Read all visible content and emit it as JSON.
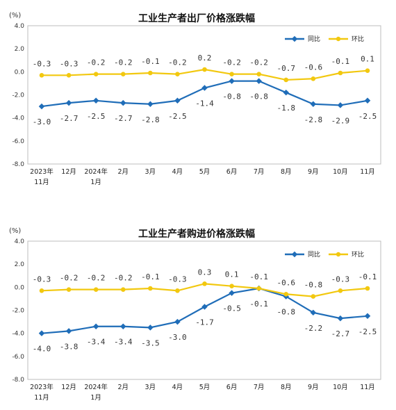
{
  "colors": {
    "yoy": "#1f6db8",
    "mom": "#f2c80f"
  },
  "chart_data": [
    {
      "type": "line",
      "title": "工业生产者出厂价格涨跌幅",
      "unit": "(%)",
      "categories": [
        "2023年\n11月",
        "12月",
        "2024年\n1月",
        "2月",
        "3月",
        "4月",
        "5月",
        "6月",
        "7月",
        "8月",
        "9月",
        "10月",
        "11月"
      ],
      "ylim": [
        -8.0,
        4.0
      ],
      "yticks": [
        "4.0",
        "2.0",
        "0.0",
        "-2.0",
        "-4.0",
        "-6.0",
        "-8.0"
      ],
      "legend_position": "top-right",
      "series": [
        {
          "name": "同比",
          "values": [
            -3.0,
            -2.7,
            -2.5,
            -2.7,
            -2.8,
            -2.5,
            -1.4,
            -0.8,
            -0.8,
            -1.8,
            -2.8,
            -2.9,
            -2.5
          ],
          "labels": [
            "-3.0",
            "-2.7",
            "-2.5",
            "-2.7",
            "-2.8",
            "-2.5",
            "-1.4",
            "-0.8",
            "-0.8",
            "-1.8",
            "-2.8",
            "-2.9",
            "-2.5"
          ]
        },
        {
          "name": "环比",
          "values": [
            -0.3,
            -0.3,
            -0.2,
            -0.2,
            -0.1,
            -0.2,
            0.2,
            -0.2,
            -0.2,
            -0.7,
            -0.6,
            -0.1,
            0.1
          ],
          "labels": [
            "-0.3",
            "-0.3",
            "-0.2",
            "-0.2",
            "-0.1",
            "-0.2",
            "0.2",
            "-0.2",
            "-0.2",
            "-0.7",
            "-0.6",
            "-0.1",
            "0.1"
          ]
        }
      ]
    },
    {
      "type": "line",
      "title": "工业生产者购进价格涨跌幅",
      "unit": "(%)",
      "categories": [
        "2023年\n11月",
        "12月",
        "2024年\n1月",
        "2月",
        "3月",
        "4月",
        "5月",
        "6月",
        "7月",
        "8月",
        "9月",
        "10月",
        "11月"
      ],
      "ylim": [
        -8.0,
        4.0
      ],
      "yticks": [
        "4.0",
        "2.0",
        "0.0",
        "-2.0",
        "-4.0",
        "-6.0",
        "-8.0"
      ],
      "legend_position": "top-right",
      "series": [
        {
          "name": "同比",
          "values": [
            -4.0,
            -3.8,
            -3.4,
            -3.4,
            -3.5,
            -3.0,
            -1.7,
            -0.5,
            -0.1,
            -0.8,
            -2.2,
            -2.7,
            -2.5
          ],
          "labels": [
            "-4.0",
            "-3.8",
            "-3.4",
            "-3.4",
            "-3.5",
            "-3.0",
            "-1.7",
            "-0.5",
            "-0.1",
            "-0.8",
            "-2.2",
            "-2.7",
            "-2.5"
          ]
        },
        {
          "name": "环比",
          "values": [
            -0.3,
            -0.2,
            -0.2,
            -0.2,
            -0.1,
            -0.3,
            0.3,
            0.1,
            -0.1,
            -0.6,
            -0.8,
            -0.3,
            -0.1
          ],
          "labels": [
            "-0.3",
            "-0.2",
            "-0.2",
            "-0.2",
            "-0.1",
            "-0.3",
            "0.3",
            "0.1",
            "-0.1",
            "-0.6",
            "-0.8",
            "-0.3",
            "-0.1"
          ]
        }
      ]
    }
  ]
}
